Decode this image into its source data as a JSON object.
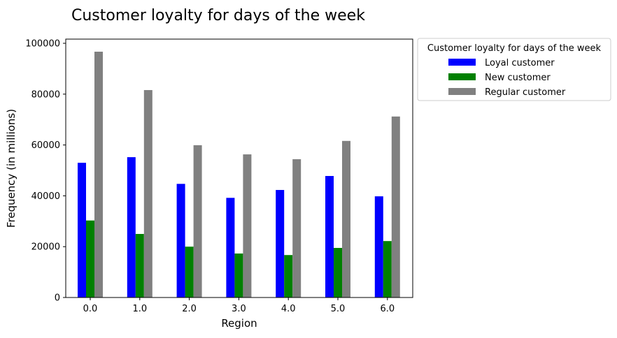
{
  "chart_data": {
    "type": "bar",
    "title": "Customer loyalty for days of the week",
    "xlabel": "Region",
    "ylabel": "Frequency (in millions)",
    "categories": [
      "0.0",
      "1.0",
      "2.0",
      "3.0",
      "4.0",
      "5.0",
      "6.0"
    ],
    "yticks": [
      "0",
      "20000",
      "40000",
      "60000",
      "80000",
      "100000"
    ],
    "ylim": [
      0,
      100000
    ],
    "grid": false,
    "legend": {
      "title": "Customer loyalty for days of the week",
      "placement": "outside-top-right"
    },
    "series": [
      {
        "name": "Loyal customer",
        "color": "#0000ff",
        "values": [
          53000,
          55200,
          44700,
          39200,
          42300,
          47800,
          39800
        ]
      },
      {
        "name": "New customer",
        "color": "#008000",
        "values": [
          30300,
          25000,
          20000,
          17300,
          16700,
          19500,
          22200
        ]
      },
      {
        "name": "Regular customer",
        "color": "#808080",
        "values": [
          96700,
          81600,
          59900,
          56300,
          54400,
          61600,
          71200
        ]
      }
    ]
  }
}
